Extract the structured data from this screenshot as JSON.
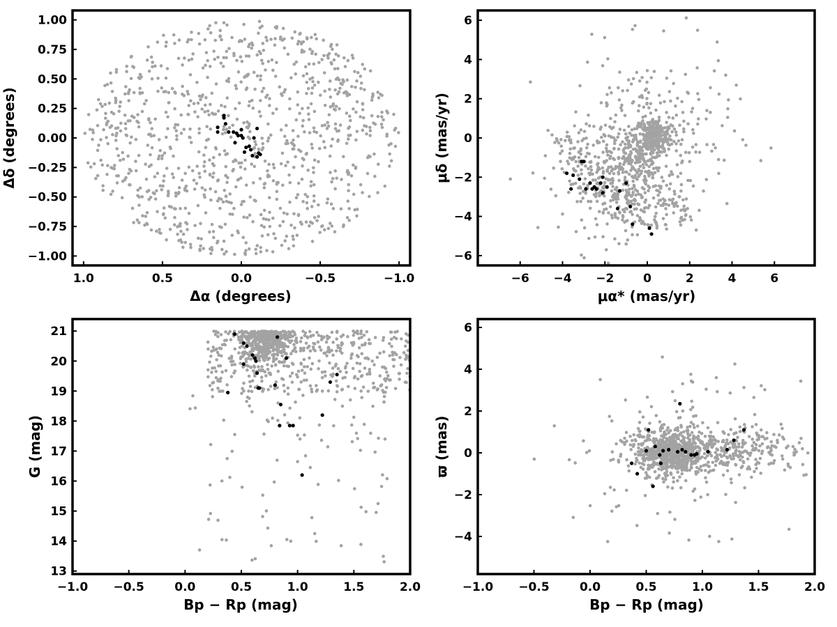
{
  "colors": {
    "field": "#a3a3a3",
    "member": "#000000",
    "frame": "#000000"
  },
  "chart_data": [
    {
      "type": "scatter",
      "panel": "sky-position",
      "xlabel": "Δα (degrees)",
      "ylabel": "Δδ (degrees)",
      "xlim": [
        1.07,
        -1.07
      ],
      "ylim": [
        -1.08,
        1.08
      ],
      "x_reversed": true,
      "xticks": [
        1.0,
        0.5,
        0.0,
        -0.5,
        -1.0
      ],
      "xtick_labels": [
        "1.0",
        "0.5",
        "0.0",
        "−0.5",
        "−1.0"
      ],
      "yticks": [
        1.0,
        0.75,
        0.5,
        0.25,
        0.0,
        -0.25,
        -0.5,
        -0.75,
        -1.0
      ],
      "ytick_labels": [
        "1.00",
        "0.75",
        "0.50",
        "0.25",
        "0.00",
        "−0.25",
        "−0.50",
        "−0.75",
        "−1.00"
      ],
      "grid": false,
      "field_stars": {
        "distribution": "uniform disk",
        "center": [
          0,
          0
        ],
        "radius": 1.0,
        "count": 1000
      },
      "members": {
        "x": [
          0.15,
          0.15,
          0.11,
          0.11,
          0.1,
          0.08,
          0.05,
          0.03,
          0.02,
          0.0,
          0.0,
          -0.01,
          0.04,
          -0.03,
          -0.05,
          -0.07,
          -0.1,
          -0.11,
          -0.12,
          -0.1,
          -0.08,
          -0.02,
          -0.06
        ],
        "y": [
          0.09,
          0.05,
          0.19,
          0.17,
          0.12,
          0.05,
          0.05,
          0.04,
          0.02,
          0.02,
          0.07,
          0.0,
          -0.04,
          -0.08,
          -0.07,
          -0.15,
          -0.16,
          -0.13,
          -0.14,
          0.08,
          0.0,
          -0.12,
          -0.1
        ]
      }
    },
    {
      "type": "scatter",
      "panel": "proper-motion",
      "xlabel": "μα* (mas/yr)",
      "ylabel": "μδ (mas/yr)",
      "xlim": [
        -8.0,
        7.9
      ],
      "ylim": [
        -6.5,
        6.5
      ],
      "xticks": [
        -6,
        -4,
        -2,
        0,
        2,
        4,
        6
      ],
      "xtick_labels": [
        "−6",
        "−4",
        "−2",
        "0",
        "2",
        "4",
        "6"
      ],
      "yticks": [
        -6,
        -4,
        -2,
        0,
        2,
        4,
        6
      ],
      "ytick_labels": [
        "−6",
        "−4",
        "−2",
        "0",
        "2",
        "4",
        "6"
      ],
      "grid": false,
      "field_stars": {
        "components": [
          {
            "distribution": "gaussian",
            "center": [
              0.3,
              0.1
            ],
            "sigma": [
              0.45,
              0.45
            ],
            "count": 230
          },
          {
            "distribution": "gaussian",
            "center": [
              -0.6,
              -1.0
            ],
            "sigma": [
              0.6,
              0.8
            ],
            "count": 120
          },
          {
            "distribution": "annulus-segment",
            "center": [
              0.5,
              0.3
            ],
            "radius": [
              3.3,
              4.9
            ],
            "angle_deg": [
              180,
              290
            ],
            "count": 190
          },
          {
            "distribution": "gaussian",
            "center": [
              -1.2,
              -2.3
            ],
            "sigma": [
              1.4,
              1.3
            ],
            "count": 260
          },
          {
            "distribution": "gaussian",
            "center": [
              0.2,
              0.3
            ],
            "sigma": [
              1.9,
              2.0
            ],
            "count": 260
          }
        ]
      },
      "members": {
        "x": [
          -3.8,
          -3.5,
          -3.6,
          -3.2,
          -3.0,
          -3.1,
          -2.9,
          -2.7,
          -2.6,
          -2.5,
          -2.4,
          -2.2,
          -2.1,
          -2.1,
          -1.9,
          -1.4,
          -1.3,
          -1.0,
          -0.8,
          -0.7,
          0.1,
          0.2
        ],
        "y": [
          -1.8,
          -1.9,
          -2.6,
          -2.1,
          -1.2,
          -1.2,
          -2.6,
          -2.3,
          -2.6,
          -2.5,
          -2.6,
          -2.3,
          -2.0,
          -2.8,
          -2.5,
          -3.6,
          -2.7,
          -2.3,
          -3.5,
          -4.4,
          -4.6,
          -4.9
        ]
      }
    },
    {
      "type": "scatter",
      "panel": "color-magnitude",
      "xlabel": "Bp − Rp (mag)",
      "ylabel": "G (mag)",
      "xlim": [
        -1.0,
        2.0
      ],
      "ylim": [
        12.9,
        21.4
      ],
      "y_reversed": false,
      "xticks": [
        -1.0,
        -0.5,
        0.0,
        0.5,
        1.0,
        1.5,
        2.0
      ],
      "xtick_labels": [
        "−1.0",
        "−0.5",
        "0.0",
        "0.5",
        "1.0",
        "1.5",
        "2.0"
      ],
      "yticks": [
        13,
        14,
        15,
        16,
        17,
        18,
        19,
        20,
        21
      ],
      "ytick_labels": [
        "13",
        "14",
        "15",
        "16",
        "17",
        "18",
        "19",
        "20",
        "21"
      ],
      "grid": false,
      "field_stars": {
        "components": [
          {
            "distribution": "dense-faint-clump",
            "center": [
              0.72,
              20.6
            ],
            "count": 380
          },
          {
            "distribution": "broad-faint-band",
            "color_range": [
              0.2,
              2.0
            ],
            "magnitude_range": [
              19.0,
              21.0
            ],
            "count": 420
          },
          {
            "distribution": "sparse-bright-tail",
            "color_range": [
              0.0,
              1.8
            ],
            "magnitude_range": [
              13.3,
              19.0
            ],
            "count": 110
          }
        ]
      },
      "members": {
        "x": [
          0.44,
          0.52,
          0.55,
          0.6,
          0.62,
          0.63,
          0.64,
          0.52,
          0.66,
          0.65,
          0.38,
          0.8,
          0.82,
          0.85,
          0.84,
          0.9,
          0.93,
          0.96,
          1.04,
          1.22,
          1.29,
          1.35
        ],
        "y": [
          20.9,
          20.6,
          20.5,
          20.2,
          20.1,
          20.0,
          19.6,
          19.9,
          19.1,
          19.1,
          18.95,
          19.2,
          20.8,
          18.55,
          17.85,
          20.1,
          17.85,
          17.85,
          16.2,
          18.2,
          19.3,
          19.55
        ]
      }
    },
    {
      "type": "scatter",
      "panel": "parallax",
      "xlabel": "Bp − Rp (mag)",
      "ylabel": "ϖ (mas)",
      "xlim": [
        -1.0,
        2.0
      ],
      "ylim": [
        -5.8,
        6.4
      ],
      "xticks": [
        -1.0,
        -0.5,
        0.0,
        0.5,
        1.0,
        1.5,
        2.0
      ],
      "xtick_labels": [
        "−1.0",
        "−0.5",
        "0.0",
        "0.5",
        "1.0",
        "1.5",
        "2.0"
      ],
      "yticks": [
        -4,
        -2,
        0,
        2,
        4,
        6
      ],
      "ytick_labels": [
        "−4",
        "−2",
        "0",
        "2",
        "4",
        "6"
      ],
      "grid": false,
      "field_stars": {
        "components": [
          {
            "distribution": "gaussian",
            "center": [
              0.72,
              0.0
            ],
            "sigma": [
              0.14,
              0.55
            ],
            "count": 520
          },
          {
            "distribution": "gaussian",
            "center": [
              1.1,
              0.2
            ],
            "sigma": [
              0.45,
              0.6
            ],
            "count": 380
          },
          {
            "distribution": "gaussian",
            "center": [
              0.9,
              0.0
            ],
            "sigma": [
              0.5,
              1.8
            ],
            "count": 140
          }
        ]
      },
      "members": {
        "x": [
          0.37,
          0.42,
          0.5,
          0.52,
          0.56,
          0.58,
          0.62,
          0.63,
          0.65,
          0.7,
          0.78,
          0.8,
          0.82,
          0.85,
          0.9,
          0.93,
          0.95,
          1.05,
          1.22,
          1.28,
          1.37
        ],
        "y": [
          -0.5,
          -1.0,
          0.1,
          1.1,
          -1.6,
          0.3,
          -0.1,
          -0.5,
          0.1,
          0.15,
          0.05,
          2.35,
          0.15,
          0.05,
          -0.1,
          -0.1,
          -0.05,
          0.05,
          0.15,
          0.6,
          1.1
        ]
      }
    }
  ]
}
